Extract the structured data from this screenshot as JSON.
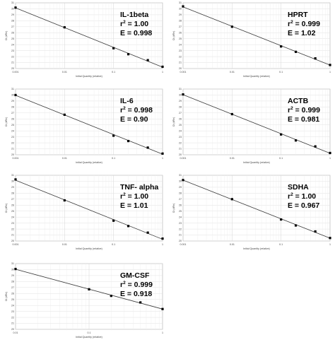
{
  "chart_data": [
    {
      "type": "scatter",
      "title": "IL-1beta",
      "r2": "1.00",
      "efficiency": "0.998",
      "xlabel": "Initial Quantity (relative)",
      "ylabel": "Ct (dRn)",
      "x_scale": "log",
      "xlim": [
        0.001,
        1
      ],
      "x_tick_labels": [
        "0.001",
        "0.01",
        "0.1",
        "1"
      ],
      "ylim": [
        20,
        31
      ],
      "y_tick_labels": [
        "20",
        "21",
        "22",
        "23",
        "24",
        "25",
        "26",
        "27",
        "28",
        "29",
        "30",
        "31"
      ],
      "grid": true,
      "x": [
        0.001,
        0.01,
        0.1,
        0.2,
        0.5,
        1
      ],
      "y": [
        30.2,
        26.9,
        23.4,
        22.4,
        21.4,
        20.3
      ],
      "trendline": true
    },
    {
      "type": "scatter",
      "title": "HPRT",
      "r2": "0.999",
      "efficiency": "1.02",
      "xlabel": "Initial Quantity (relative)",
      "ylabel": "Ct (dRn)",
      "x_scale": "log",
      "xlim": [
        0.001,
        1
      ],
      "x_tick_labels": [
        "0.001",
        "0.01",
        "0.1",
        "1"
      ],
      "ylim": [
        20,
        31
      ],
      "y_tick_labels": [
        "20",
        "21",
        "22",
        "23",
        "24",
        "25",
        "26",
        "27",
        "28",
        "29",
        "30",
        "31"
      ],
      "grid": true,
      "x": [
        0.001,
        0.01,
        0.1,
        0.2,
        0.5,
        1
      ],
      "y": [
        30.4,
        27.0,
        23.7,
        22.8,
        21.7,
        20.6
      ],
      "trendline": true
    },
    {
      "type": "scatter",
      "title": "IL-6",
      "r2": "0.998",
      "efficiency": "0.90",
      "xlabel": "Initial Quantity (relative)",
      "ylabel": "Ct (dRn)",
      "x_scale": "log",
      "xlim": [
        0.001,
        1
      ],
      "x_tick_labels": [
        "0.001",
        "0.01",
        "0.1",
        "1"
      ],
      "ylim": [
        20,
        31
      ],
      "y_tick_labels": [
        "20",
        "21",
        "22",
        "23",
        "24",
        "25",
        "26",
        "27",
        "28",
        "29",
        "30",
        "31"
      ],
      "grid": true,
      "x": [
        0.001,
        0.01,
        0.1,
        0.2,
        0.5,
        1
      ],
      "y": [
        30.0,
        26.7,
        23.2,
        22.3,
        21.2,
        20.2
      ],
      "trendline": true
    },
    {
      "type": "scatter",
      "title": "ACTB",
      "r2": "0.999",
      "efficiency": "0.981",
      "xlabel": "Initial Quantity (relative)",
      "ylabel": "Ct (dRn)",
      "x_scale": "log",
      "xlim": [
        0.001,
        1
      ],
      "x_tick_labels": [
        "0.001",
        "0.01",
        "0.1",
        "1"
      ],
      "ylim": [
        20,
        31
      ],
      "y_tick_labels": [
        "20",
        "21",
        "22",
        "23",
        "24",
        "25",
        "26",
        "27",
        "28",
        "29",
        "30",
        "31"
      ],
      "grid": true,
      "x": [
        0.001,
        0.01,
        0.1,
        0.2,
        0.5,
        1
      ],
      "y": [
        30.1,
        26.8,
        23.4,
        22.4,
        21.4,
        20.3
      ],
      "trendline": true
    },
    {
      "type": "scatter",
      "title": "TNF- alpha",
      "r2": "1.00",
      "efficiency": "1.01",
      "xlabel": "Initial Quantity (relative)",
      "ylabel": "Ct (dRn)",
      "x_scale": "log",
      "xlim": [
        0.001,
        1
      ],
      "x_tick_labels": [
        "0.001",
        "0.01",
        "0.1",
        "1"
      ],
      "ylim": [
        20,
        31
      ],
      "y_tick_labels": [
        "20",
        "21",
        "22",
        "23",
        "24",
        "25",
        "26",
        "27",
        "28",
        "29",
        "30",
        "31"
      ],
      "grid": true,
      "x": [
        0.001,
        0.01,
        0.1,
        0.2,
        0.5,
        1
      ],
      "y": [
        30.3,
        26.8,
        23.4,
        22.5,
        21.4,
        20.4
      ],
      "trendline": true
    },
    {
      "type": "scatter",
      "title": "SDHA",
      "r2": "1.00",
      "efficiency": "0.967",
      "xlabel": "Initial Quantity (relative)",
      "ylabel": "Ct (dRn)",
      "x_scale": "log",
      "xlim": [
        0.001,
        1
      ],
      "x_tick_labels": [
        "0.001",
        "0.01",
        "0.1",
        "1"
      ],
      "ylim": [
        20,
        31
      ],
      "y_tick_labels": [
        "20",
        "21",
        "22",
        "23",
        "24",
        "25",
        "26",
        "27",
        "28",
        "29",
        "30",
        "31"
      ],
      "grid": true,
      "x": [
        0.001,
        0.01,
        0.1,
        0.2,
        0.5,
        1
      ],
      "y": [
        30.2,
        27.0,
        23.6,
        22.6,
        21.6,
        20.5
      ],
      "trendline": true
    },
    {
      "type": "scatter",
      "title": "GM-CSF",
      "r2": "0.999",
      "efficiency": "0.918",
      "xlabel": "Initial Quantity (relative)",
      "ylabel": "Ct (dRn)",
      "x_scale": "log",
      "xlim": [
        0.01,
        1
      ],
      "x_tick_labels": [
        "0.01",
        "0.1",
        "1"
      ],
      "ylim": [
        20,
        31
      ],
      "y_tick_labels": [
        "20",
        "21",
        "22",
        "23",
        "24",
        "25",
        "26",
        "27",
        "28",
        "29",
        "30",
        "31"
      ],
      "grid": true,
      "x": [
        0.01,
        0.1,
        0.2,
        0.5,
        1
      ],
      "y": [
        30.1,
        26.7,
        25.6,
        24.5,
        23.4
      ],
      "trendline": true
    }
  ]
}
